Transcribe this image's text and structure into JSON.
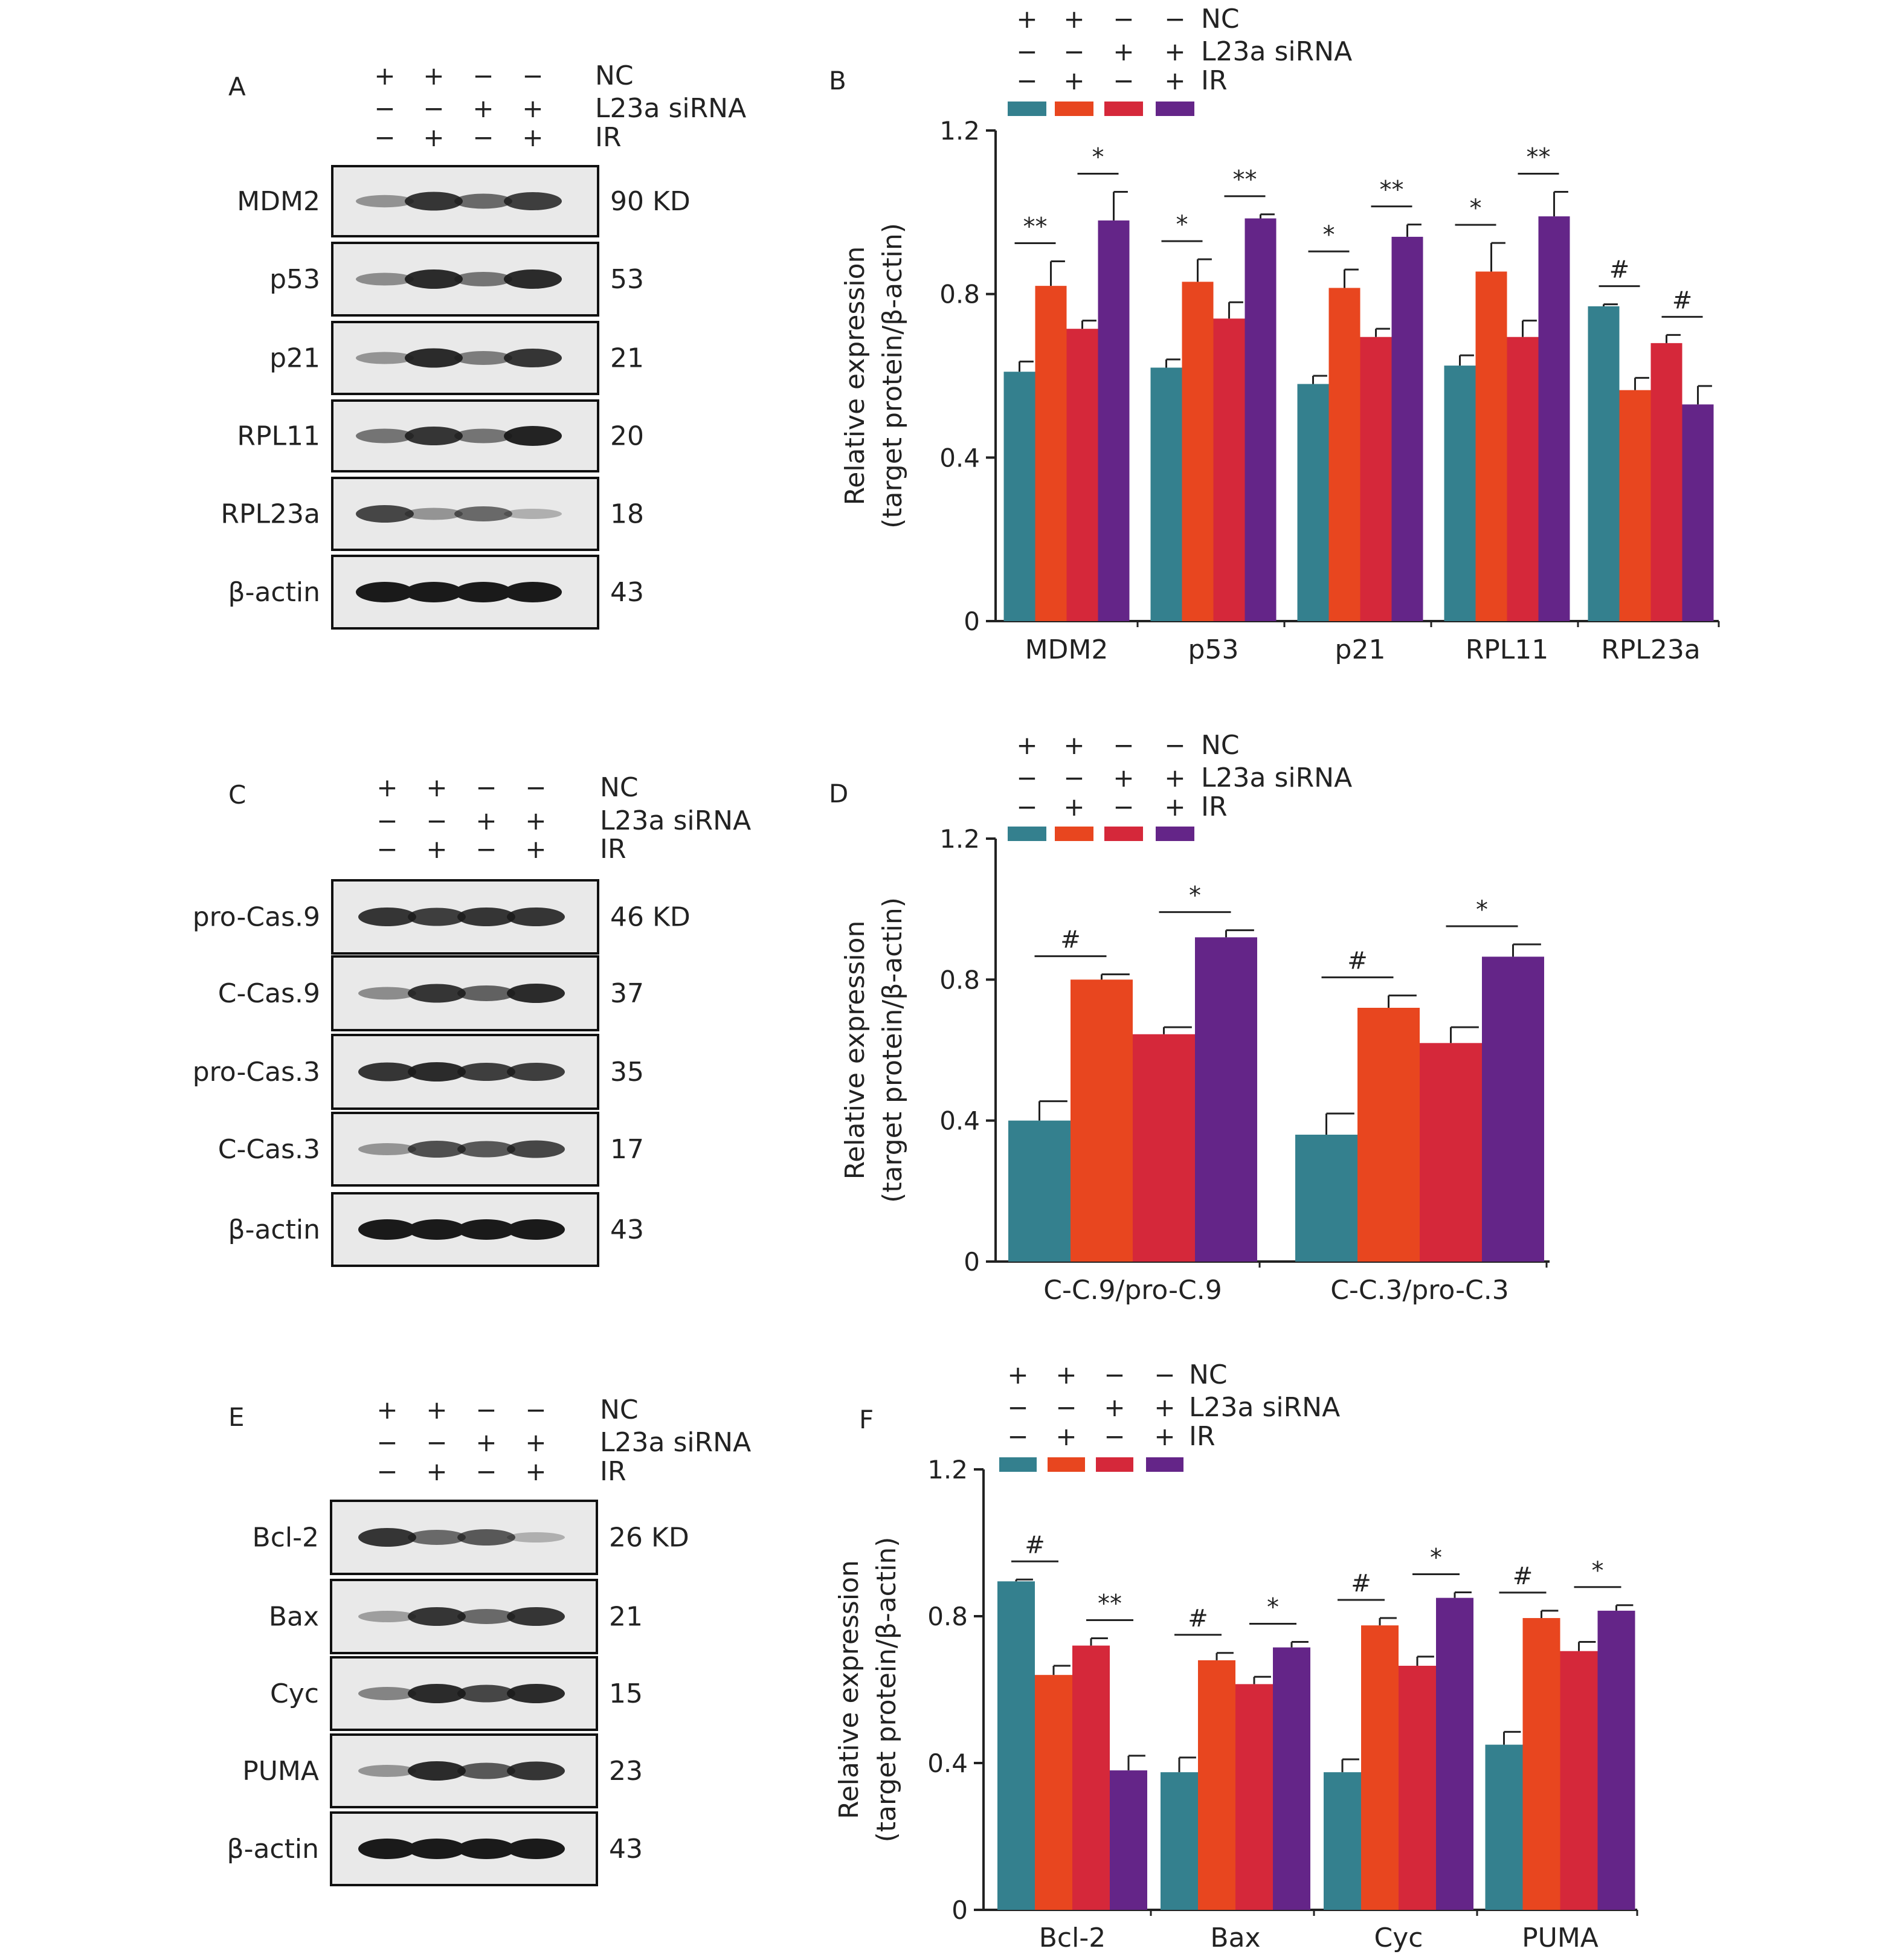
{
  "colors": {
    "NC": "#34808e",
    "NC_IR": "#e8461f",
    "siRNA": "#d5283a",
    "siRNA_IR": "#642588",
    "axis": "#222222",
    "text": "#222222"
  },
  "treatment_rows": [
    {
      "label": "NC",
      "signs": [
        "+",
        "+",
        "−",
        "−"
      ]
    },
    {
      "label": "L23a siRNA",
      "signs": [
        "−",
        "−",
        "+",
        "+"
      ]
    },
    {
      "label": "IR",
      "signs": [
        "−",
        "+",
        "−",
        "+"
      ]
    }
  ],
  "blot_panels": [
    {
      "letter": "A",
      "proteins": [
        {
          "name": "MDM2",
          "size": "90 KD",
          "intensity": [
            0.32,
            0.85,
            0.55,
            0.8
          ]
        },
        {
          "name": "p53",
          "size": "53",
          "intensity": [
            0.35,
            0.9,
            0.5,
            0.9
          ]
        },
        {
          "name": "p21",
          "size": "21",
          "intensity": [
            0.3,
            0.9,
            0.45,
            0.85
          ]
        },
        {
          "name": "RPL11",
          "size": "20",
          "intensity": [
            0.5,
            0.85,
            0.5,
            0.95
          ]
        },
        {
          "name": "RPL23a",
          "size": "18",
          "intensity": [
            0.75,
            0.3,
            0.55,
            0.15
          ]
        },
        {
          "name": "β-actin",
          "size": "43",
          "intensity": [
            1,
            1,
            1,
            1
          ]
        }
      ]
    },
    {
      "letter": "C",
      "proteins": [
        {
          "name": "pro-Cas.9",
          "size": "46 KD",
          "intensity": [
            0.85,
            0.8,
            0.85,
            0.85
          ]
        },
        {
          "name": "C-Cas.9",
          "size": "37",
          "intensity": [
            0.35,
            0.85,
            0.6,
            0.9
          ]
        },
        {
          "name": "pro-Cas.3",
          "size": "35",
          "intensity": [
            0.85,
            0.9,
            0.8,
            0.8
          ]
        },
        {
          "name": "C-Cas.3",
          "size": "17",
          "intensity": [
            0.3,
            0.7,
            0.65,
            0.75
          ]
        },
        {
          "name": "β-actin",
          "size": "43",
          "intensity": [
            1,
            1,
            1,
            1
          ]
        }
      ]
    },
    {
      "letter": "E",
      "proteins": [
        {
          "name": "Bcl-2",
          "size": "26 KD",
          "intensity": [
            0.85,
            0.55,
            0.65,
            0.15
          ]
        },
        {
          "name": "Bax",
          "size": "21",
          "intensity": [
            0.25,
            0.85,
            0.55,
            0.85
          ]
        },
        {
          "name": "Cyc",
          "size": "15",
          "intensity": [
            0.4,
            0.9,
            0.75,
            0.9
          ]
        },
        {
          "name": "PUMA",
          "size": "23",
          "intensity": [
            0.3,
            0.9,
            0.65,
            0.85
          ]
        },
        {
          "name": "β-actin",
          "size": "43",
          "intensity": [
            1,
            1,
            1,
            1
          ]
        }
      ]
    }
  ],
  "chart_data": [
    {
      "panel": "B",
      "type": "bar",
      "ylabel": [
        "Relative expression",
        "(target protein/β-actin)"
      ],
      "ylim": [
        0,
        1.2
      ],
      "yticks": [
        "0",
        "0.4",
        "0.8",
        "1.2"
      ],
      "categories": [
        "MDM2",
        "p53",
        "p21",
        "RPL11",
        "RPL23a"
      ],
      "series": [
        {
          "key": "NC",
          "values": [
            0.61,
            0.62,
            0.58,
            0.625,
            0.77
          ],
          "errors": [
            0.025,
            0.02,
            0.02,
            0.025,
            0.005
          ]
        },
        {
          "key": "NC_IR",
          "values": [
            0.82,
            0.83,
            0.815,
            0.855,
            0.565
          ],
          "errors": [
            0.06,
            0.055,
            0.045,
            0.07,
            0.03
          ]
        },
        {
          "key": "siRNA",
          "values": [
            0.715,
            0.74,
            0.695,
            0.695,
            0.68
          ],
          "errors": [
            0.02,
            0.04,
            0.02,
            0.04,
            0.02
          ]
        },
        {
          "key": "siRNA_IR",
          "values": [
            0.98,
            0.985,
            0.94,
            0.99,
            0.53
          ],
          "errors": [
            0.07,
            0.01,
            0.03,
            0.06,
            0.045
          ]
        }
      ],
      "significance": [
        {
          "category": 0,
          "from": 0,
          "to": 1,
          "label": "**"
        },
        {
          "category": 0,
          "from": 2,
          "to": 3,
          "label": "*"
        },
        {
          "category": 1,
          "from": 0,
          "to": 1,
          "label": "*"
        },
        {
          "category": 1,
          "from": 2,
          "to": 3,
          "label": "**"
        },
        {
          "category": 2,
          "from": 0,
          "to": 1,
          "label": "*"
        },
        {
          "category": 2,
          "from": 2,
          "to": 3,
          "label": "**"
        },
        {
          "category": 3,
          "from": 0,
          "to": 1,
          "label": "*"
        },
        {
          "category": 3,
          "from": 2,
          "to": 3,
          "label": "**"
        },
        {
          "category": 4,
          "from": 0,
          "to": 1,
          "label": "#"
        },
        {
          "category": 4,
          "from": 2,
          "to": 3,
          "label": "#"
        }
      ]
    },
    {
      "panel": "D",
      "type": "bar",
      "ylabel": [
        "Relative expression",
        "(target protein/β-actin)"
      ],
      "ylim": [
        0,
        1.2
      ],
      "yticks": [
        "0",
        "0.4",
        "0.8",
        "1.2"
      ],
      "categories": [
        "C-C.9/pro-C.9",
        "C-C.3/pro-C.3"
      ],
      "series": [
        {
          "key": "NC",
          "values": [
            0.4,
            0.36
          ],
          "errors": [
            0.055,
            0.06
          ]
        },
        {
          "key": "NC_IR",
          "values": [
            0.8,
            0.72
          ],
          "errors": [
            0.015,
            0.035
          ]
        },
        {
          "key": "siRNA",
          "values": [
            0.645,
            0.62
          ],
          "errors": [
            0.02,
            0.045
          ]
        },
        {
          "key": "siRNA_IR",
          "values": [
            0.92,
            0.865
          ],
          "errors": [
            0.02,
            0.035
          ]
        }
      ],
      "significance": [
        {
          "category": 0,
          "from": 0,
          "to": 1,
          "label": "#"
        },
        {
          "category": 0,
          "from": 2,
          "to": 3,
          "label": "*"
        },
        {
          "category": 1,
          "from": 0,
          "to": 1,
          "label": "#"
        },
        {
          "category": 1,
          "from": 2,
          "to": 3,
          "label": "*"
        }
      ]
    },
    {
      "panel": "F",
      "type": "bar",
      "ylabel": [
        "Relative expression",
        "(target protein/β-actin)"
      ],
      "ylim": [
        0,
        1.2
      ],
      "yticks": [
        "0",
        "0.4",
        "0.8",
        "1.2"
      ],
      "categories": [
        "Bcl-2",
        "Bax",
        "Cyc",
        "PUMA"
      ],
      "series": [
        {
          "key": "NC",
          "values": [
            0.895,
            0.375,
            0.375,
            0.45
          ],
          "errors": [
            0.005,
            0.04,
            0.035,
            0.035
          ]
        },
        {
          "key": "NC_IR",
          "values": [
            0.64,
            0.68,
            0.775,
            0.795
          ],
          "errors": [
            0.025,
            0.02,
            0.02,
            0.02
          ]
        },
        {
          "key": "siRNA",
          "values": [
            0.72,
            0.615,
            0.665,
            0.705
          ],
          "errors": [
            0.02,
            0.02,
            0.025,
            0.025
          ]
        },
        {
          "key": "siRNA_IR",
          "values": [
            0.38,
            0.715,
            0.85,
            0.815
          ],
          "errors": [
            0.04,
            0.015,
            0.015,
            0.015
          ]
        }
      ],
      "significance": [
        {
          "category": 0,
          "from": 0,
          "to": 1,
          "label": "#"
        },
        {
          "category": 0,
          "from": 2,
          "to": 3,
          "label": "**"
        },
        {
          "category": 1,
          "from": 0,
          "to": 1,
          "label": "#"
        },
        {
          "category": 1,
          "from": 2,
          "to": 3,
          "label": "*"
        },
        {
          "category": 2,
          "from": 0,
          "to": 1,
          "label": "#"
        },
        {
          "category": 2,
          "from": 2,
          "to": 3,
          "label": "*"
        },
        {
          "category": 3,
          "from": 0,
          "to": 1,
          "label": "#"
        },
        {
          "category": 3,
          "from": 2,
          "to": 3,
          "label": "*"
        }
      ]
    }
  ]
}
